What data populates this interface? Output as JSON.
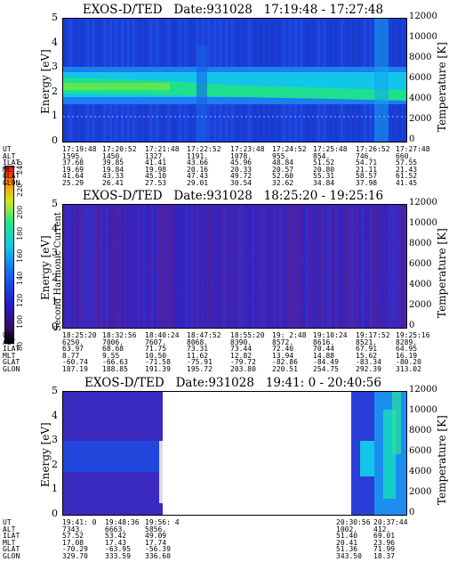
{
  "colorbar": {
    "label": "Second Harmonic Current",
    "ticks": [
      "80",
      "100",
      "120",
      "140",
      "160",
      "180",
      "200",
      "220",
      "240"
    ]
  },
  "row_labels": [
    "UT",
    "ALT",
    "ILAT",
    "MLT",
    "GLAT",
    "GLON"
  ],
  "chart_data": [
    {
      "type": "heatmap",
      "title": "EXOS-D/TED   Date:931028   17:19:48 - 17:27:48",
      "ylabel": "Energy [eV]",
      "y2label": "Temperature [K]",
      "ylim": [
        0,
        5
      ],
      "y2lim": [
        0,
        12000
      ],
      "yticks": [
        "0",
        "1",
        "2",
        "3",
        "4",
        "5"
      ],
      "y2ticks": [
        "0",
        "2000",
        "4000",
        "6000",
        "8000",
        "10000",
        "12000"
      ],
      "orbit": {
        "UT": [
          "17:19:48",
          "17:20:52",
          "17:21:48",
          "17:22:52",
          "17:23:48",
          "17:24:52",
          "17:25:48",
          "17:26:52",
          "17:27:48"
        ],
        "ALT": [
          "1595.",
          "1450.",
          "1327.",
          "1191.",
          "1078.",
          "955.",
          "854.",
          "746.",
          "660."
        ],
        "ILAT": [
          "37.68",
          "39.85",
          "41.41",
          "43.66",
          "45.96",
          "48.84",
          "51.52",
          "54.71",
          "57.55"
        ],
        "MLT": [
          "19.69",
          "19.84",
          "19.98",
          "20.16",
          "20.33",
          "20.57",
          "20.80",
          "21.11",
          "21.43"
        ],
        "GLAT": [
          "41.64",
          "43.33",
          "45.10",
          "47.43",
          "49.72",
          "52.60",
          "55.31",
          "58.57",
          "61.52"
        ],
        "GLON": [
          "25.29",
          "26.41",
          "27.53",
          "29.01",
          "30.54",
          "32.62",
          "34.84",
          "37.98",
          "41.45"
        ]
      }
    },
    {
      "type": "heatmap",
      "title": "EXOS-D/TED   Date:931028   18:25:20 - 19:25:16",
      "ylabel": "Energy [eV]",
      "y2label": "Temperature [K]",
      "ylim": [
        0,
        5
      ],
      "y2lim": [
        0,
        12000
      ],
      "yticks": [
        "0",
        "1",
        "2",
        "3",
        "4",
        "5"
      ],
      "y2ticks": [
        "0",
        "2000",
        "4000",
        "6000",
        "8000",
        "10000",
        "12000"
      ],
      "orbit": {
        "UT": [
          "18:25:20",
          "18:32:56",
          "18:40:24",
          "18:47:52",
          "18:55:20",
          "19: 2:48",
          "19:10:24",
          "19:17:52",
          "19:25:16"
        ],
        "ALT": [
          "6250.",
          "7006.",
          "7607.",
          "8068.",
          "8390.",
          "8572.",
          "8616.",
          "8521.",
          "8289."
        ],
        "ILAT": [
          "63.97",
          "68.68",
          "71.75",
          "73.31",
          "73.44",
          "72.40",
          "70.44",
          "67.91",
          "64.95"
        ],
        "MLT": [
          "8.77",
          "9.55",
          "10.50",
          "11.62",
          "12.82",
          "13.94",
          "14.88",
          "15.62",
          "16.19"
        ],
        "GLAT": [
          "-60.74",
          "-66.63",
          "-71.58",
          "-75.91",
          "-79.72",
          "-82.86",
          "-84.49",
          "-83.34",
          "-80.20"
        ],
        "GLON": [
          "187.19",
          "188.85",
          "191.39",
          "195.72",
          "203.80",
          "220.51",
          "254.75",
          "292.39",
          "313.02"
        ]
      }
    },
    {
      "type": "heatmap",
      "title": "EXOS-D/TED   Date:931028   19:41: 0 - 20:40:56",
      "ylabel": "Energy [eV]",
      "y2label": "Temperature [K]",
      "ylim": [
        0,
        5
      ],
      "y2lim": [
        0,
        12000
      ],
      "yticks": [
        "0",
        "1",
        "2",
        "3",
        "4",
        "5"
      ],
      "y2ticks": [
        "0",
        "2000",
        "4000",
        "6000",
        "8000",
        "10000",
        "12000"
      ],
      "orbit_left": {
        "UT": [
          "19:41: 0",
          "19:48:36",
          "19:56: 4"
        ],
        "ALT": [
          "7343.",
          "6663.",
          "5856."
        ],
        "ILAT": [
          "57.52",
          "53.42",
          "49.09"
        ],
        "MLT": [
          "17.08",
          "17.43",
          "17.74"
        ],
        "GLAT": [
          "-70.29",
          "-63.95",
          "-56.39"
        ],
        "GLON": [
          "329.70",
          "333.59",
          "336.60"
        ]
      },
      "orbit_right": {
        "UT": [
          "20:30:56",
          "20:37:44"
        ],
        "ALT": [
          "1002.",
          "412."
        ],
        "ILAT": [
          "51.40",
          "69.01"
        ],
        "MLT": [
          "20.41",
          "23.96"
        ],
        "GLAT": [
          "51.36",
          "71.99"
        ],
        "GLON": [
          "343.50",
          "18.37"
        ]
      }
    }
  ]
}
